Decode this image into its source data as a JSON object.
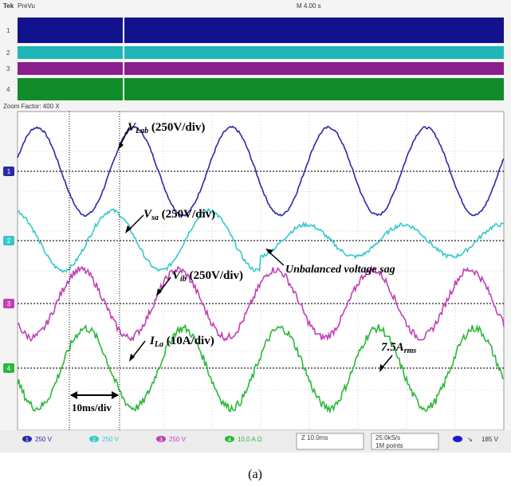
{
  "header": {
    "brand": "Tek",
    "mode": "PreVu",
    "timebase": "M 4.00 s"
  },
  "zoom": {
    "label": "Zoom Factor: 400 X"
  },
  "channels": [
    {
      "id": "1",
      "color": "#2a2aa8",
      "scale": "250 V"
    },
    {
      "id": "2",
      "color": "#35c8cc",
      "scale": "250 V"
    },
    {
      "id": "3",
      "color": "#c040b8",
      "scale": "250 V"
    },
    {
      "id": "4",
      "color": "#2cb83a",
      "scale": "10.0 A Ω"
    }
  ],
  "overview_colors": [
    "#12128c",
    "#22b5b8",
    "#8a1e8a",
    "#108c2a"
  ],
  "chart_data": {
    "type": "line",
    "x_unit": "ms",
    "x_range": [
      0,
      100
    ],
    "x_per_div": "10ms/div",
    "series": [
      {
        "name": "V_Lab",
        "scale": "250V/div",
        "cycles": [
          {
            "from": 0,
            "to": 100,
            "amp_div": 1.1
          }
        ]
      },
      {
        "name": "V_sa",
        "scale": "250V/div",
        "cycles": [
          {
            "from": 0,
            "to": 50,
            "amp_div": 0.75
          },
          {
            "from": 50,
            "to": 100,
            "amp_div": 0.4
          }
        ]
      },
      {
        "name": "V_ib",
        "scale": "250V/div",
        "cycles": [
          {
            "from": 0,
            "to": 100,
            "amp_div": 0.85
          }
        ]
      },
      {
        "name": "I_La",
        "scale": "10A/div",
        "cycles": [
          {
            "from": 0,
            "to": 100,
            "amp_div": 1.0
          }
        ]
      }
    ],
    "annotations": {
      "v_lab": {
        "main": "V",
        "sub": "Lab",
        "rest": " (250V/div)"
      },
      "v_sa": {
        "main": "V",
        "sub": "sa",
        "rest": " (250V/div)"
      },
      "v_ib": {
        "main": "V",
        "sub": "ib",
        "rest": " (250V/div)"
      },
      "i_la": {
        "main": "I",
        "sub": "La",
        "rest": " (10A/div)"
      },
      "sag": "Unbalanced voltage sag",
      "rms": {
        "main": "7.5A",
        "sub": "rms"
      },
      "timediv": "10ms/div"
    }
  },
  "footer": {
    "time": "Z 10.0ms",
    "rate": "25.0kS/s",
    "points": "1M points",
    "trigger": "185 V"
  },
  "caption": "(a)"
}
